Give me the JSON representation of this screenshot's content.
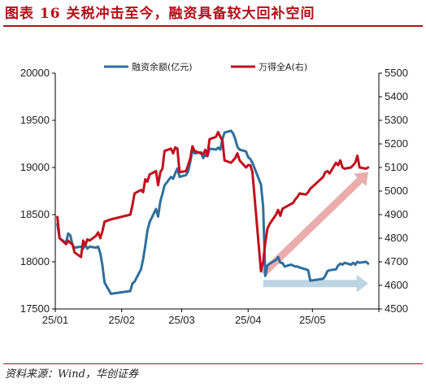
{
  "header": {
    "figure_title": "图表 16   关税冲击至今，融资具备较大回补空间"
  },
  "footer": {
    "source": "资料来源：Wind，华创证券"
  },
  "chart_data": {
    "type": "line",
    "x_tick_labels": [
      "25/01",
      "25/02",
      "25/03",
      "25/04",
      "25/05"
    ],
    "y_left": {
      "ylim": [
        17500,
        20000
      ],
      "ticks": [
        17500,
        18000,
        18500,
        19000,
        19500,
        20000
      ]
    },
    "y_right": {
      "ylim": [
        4500,
        5500
      ],
      "ticks": [
        4500,
        4600,
        4700,
        4800,
        4900,
        5000,
        5100,
        5200,
        5300,
        5400,
        5500
      ]
    },
    "legend_position": "top",
    "grid": false,
    "series": [
      {
        "name": "融资余额(亿元)",
        "axis": "left",
        "color": "#2e6f9e",
        "points": [
          [
            "2025-01-02",
            18400
          ],
          [
            "2025-01-03",
            18250
          ],
          [
            "2025-01-06",
            18200
          ],
          [
            "2025-01-07",
            18300
          ],
          [
            "2025-01-08",
            18280
          ],
          [
            "2025-01-09",
            18180
          ],
          [
            "2025-01-10",
            18150
          ],
          [
            "2025-01-13",
            18160
          ],
          [
            "2025-01-14",
            18140
          ],
          [
            "2025-01-15",
            18180
          ],
          [
            "2025-01-16",
            18140
          ],
          [
            "2025-01-17",
            18160
          ],
          [
            "2025-01-20",
            18150
          ],
          [
            "2025-01-21",
            18160
          ],
          [
            "2025-01-22",
            18090
          ],
          [
            "2025-01-23",
            17960
          ],
          [
            "2025-01-24",
            17780
          ],
          [
            "2025-01-27",
            17660
          ],
          [
            "2025-02-05",
            17690
          ],
          [
            "2025-02-06",
            17770
          ],
          [
            "2025-02-07",
            17790
          ],
          [
            "2025-02-10",
            17920
          ],
          [
            "2025-02-11",
            18030
          ],
          [
            "2025-02-12",
            18170
          ],
          [
            "2025-02-13",
            18330
          ],
          [
            "2025-02-14",
            18420
          ],
          [
            "2025-02-17",
            18560
          ],
          [
            "2025-02-18",
            18480
          ],
          [
            "2025-02-19",
            18640
          ],
          [
            "2025-02-20",
            18720
          ],
          [
            "2025-02-21",
            18810
          ],
          [
            "2025-02-24",
            18900
          ],
          [
            "2025-02-25",
            18880
          ],
          [
            "2025-02-26",
            18940
          ],
          [
            "2025-02-27",
            18990
          ],
          [
            "2025-02-28",
            18900
          ],
          [
            "2025-03-03",
            18920
          ],
          [
            "2025-03-04",
            18960
          ],
          [
            "2025-03-05",
            19060
          ],
          [
            "2025-03-06",
            19190
          ],
          [
            "2025-03-07",
            19150
          ],
          [
            "2025-03-10",
            19160
          ],
          [
            "2025-03-11",
            19100
          ],
          [
            "2025-03-12",
            19130
          ],
          [
            "2025-03-13",
            19120
          ],
          [
            "2025-03-14",
            19200
          ],
          [
            "2025-03-17",
            19190
          ],
          [
            "2025-03-18",
            19210
          ],
          [
            "2025-03-19",
            19190
          ],
          [
            "2025-03-20",
            19300
          ],
          [
            "2025-03-21",
            19370
          ],
          [
            "2025-03-24",
            19390
          ],
          [
            "2025-03-25",
            19360
          ],
          [
            "2025-03-26",
            19300
          ],
          [
            "2025-03-27",
            19220
          ],
          [
            "2025-03-28",
            19190
          ],
          [
            "2025-03-31",
            19170
          ],
          [
            "2025-04-01",
            19110
          ],
          [
            "2025-04-02",
            19090
          ],
          [
            "2025-04-03",
            19050
          ],
          [
            "2025-04-07",
            18820
          ],
          [
            "2025-04-08",
            18580
          ],
          [
            "2025-04-09",
            17850
          ],
          [
            "2025-04-10",
            17960
          ],
          [
            "2025-04-11",
            17980
          ],
          [
            "2025-04-14",
            18020
          ],
          [
            "2025-04-15",
            18050
          ],
          [
            "2025-04-16",
            17990
          ],
          [
            "2025-04-17",
            17990
          ],
          [
            "2025-04-18",
            17950
          ],
          [
            "2025-04-21",
            17970
          ],
          [
            "2025-04-22",
            17960
          ],
          [
            "2025-04-23",
            17950
          ],
          [
            "2025-04-24",
            17950
          ],
          [
            "2025-04-25",
            17940
          ],
          [
            "2025-04-28",
            17920
          ],
          [
            "2025-04-29",
            17910
          ],
          [
            "2025-04-30",
            17800
          ],
          [
            "2025-05-06",
            17820
          ],
          [
            "2025-05-07",
            17850
          ],
          [
            "2025-05-08",
            17900
          ],
          [
            "2025-05-09",
            17910
          ],
          [
            "2025-05-12",
            17920
          ],
          [
            "2025-05-13",
            17960
          ],
          [
            "2025-05-14",
            17980
          ],
          [
            "2025-05-15",
            17970
          ],
          [
            "2025-05-16",
            17990
          ],
          [
            "2025-05-19",
            17970
          ],
          [
            "2025-05-20",
            17990
          ],
          [
            "2025-05-21",
            17970
          ],
          [
            "2025-05-22",
            18000
          ],
          [
            "2025-05-23",
            17990
          ],
          [
            "2025-05-26",
            18000
          ],
          [
            "2025-05-27",
            17980
          ]
        ]
      },
      {
        "name": "万得全A(右)",
        "axis": "right",
        "color": "#c0101e",
        "points": [
          [
            "2025-01-02",
            4890
          ],
          [
            "2025-01-03",
            4800
          ],
          [
            "2025-01-06",
            4775
          ],
          [
            "2025-01-07",
            4790
          ],
          [
            "2025-01-08",
            4780
          ],
          [
            "2025-01-09",
            4775
          ],
          [
            "2025-01-10",
            4740
          ],
          [
            "2025-01-13",
            4720
          ],
          [
            "2025-01-14",
            4790
          ],
          [
            "2025-01-15",
            4770
          ],
          [
            "2025-01-16",
            4795
          ],
          [
            "2025-01-17",
            4790
          ],
          [
            "2025-01-20",
            4810
          ],
          [
            "2025-01-21",
            4825
          ],
          [
            "2025-01-22",
            4800
          ],
          [
            "2025-01-23",
            4830
          ],
          [
            "2025-01-24",
            4870
          ],
          [
            "2025-01-27",
            4880
          ],
          [
            "2025-02-05",
            4900
          ],
          [
            "2025-02-06",
            4940
          ],
          [
            "2025-02-07",
            4990
          ],
          [
            "2025-02-10",
            5005
          ],
          [
            "2025-02-11",
            4995
          ],
          [
            "2025-02-12",
            5050
          ],
          [
            "2025-02-13",
            5040
          ],
          [
            "2025-02-14",
            5070
          ],
          [
            "2025-02-17",
            5085
          ],
          [
            "2025-02-18",
            5025
          ],
          [
            "2025-02-19",
            5080
          ],
          [
            "2025-02-20",
            5095
          ],
          [
            "2025-02-21",
            5170
          ],
          [
            "2025-02-24",
            5180
          ],
          [
            "2025-02-25",
            5160
          ],
          [
            "2025-02-26",
            5185
          ],
          [
            "2025-02-27",
            5180
          ],
          [
            "2025-02-28",
            5080
          ],
          [
            "2025-03-03",
            5085
          ],
          [
            "2025-03-04",
            5110
          ],
          [
            "2025-03-05",
            5140
          ],
          [
            "2025-03-06",
            5190
          ],
          [
            "2025-03-07",
            5170
          ],
          [
            "2025-03-10",
            5160
          ],
          [
            "2025-03-11",
            5155
          ],
          [
            "2025-03-12",
            5175
          ],
          [
            "2025-03-13",
            5150
          ],
          [
            "2025-03-14",
            5220
          ],
          [
            "2025-03-17",
            5230
          ],
          [
            "2025-03-18",
            5250
          ],
          [
            "2025-03-19",
            5230
          ],
          [
            "2025-03-20",
            5215
          ],
          [
            "2025-03-21",
            5130
          ],
          [
            "2025-03-24",
            5120
          ],
          [
            "2025-03-25",
            5130
          ],
          [
            "2025-03-26",
            5140
          ],
          [
            "2025-03-27",
            5160
          ],
          [
            "2025-03-28",
            5130
          ],
          [
            "2025-03-31",
            5100
          ],
          [
            "2025-04-01",
            5110
          ],
          [
            "2025-04-02",
            5110
          ],
          [
            "2025-04-03",
            5080
          ],
          [
            "2025-04-07",
            4660
          ],
          [
            "2025-04-08",
            4700
          ],
          [
            "2025-04-09",
            4780
          ],
          [
            "2025-04-10",
            4840
          ],
          [
            "2025-04-11",
            4860
          ],
          [
            "2025-04-14",
            4900
          ],
          [
            "2025-04-15",
            4920
          ],
          [
            "2025-04-16",
            4895
          ],
          [
            "2025-04-17",
            4925
          ],
          [
            "2025-04-18",
            4930
          ],
          [
            "2025-04-21",
            4945
          ],
          [
            "2025-04-22",
            4950
          ],
          [
            "2025-04-23",
            4965
          ],
          [
            "2025-04-24",
            4975
          ],
          [
            "2025-04-25",
            4990
          ],
          [
            "2025-04-28",
            4985
          ],
          [
            "2025-04-29",
            4995
          ],
          [
            "2025-04-30",
            5010
          ],
          [
            "2025-05-06",
            5060
          ],
          [
            "2025-05-07",
            5080
          ],
          [
            "2025-05-08",
            5085
          ],
          [
            "2025-05-09",
            5075
          ],
          [
            "2025-05-12",
            5120
          ],
          [
            "2025-05-13",
            5110
          ],
          [
            "2025-05-14",
            5130
          ],
          [
            "2025-05-15",
            5100
          ],
          [
            "2025-05-16",
            5095
          ],
          [
            "2025-05-19",
            5100
          ],
          [
            "2025-05-20",
            5110
          ],
          [
            "2025-05-21",
            5120
          ],
          [
            "2025-05-22",
            5150
          ],
          [
            "2025-05-23",
            5100
          ],
          [
            "2025-05-26",
            5095
          ],
          [
            "2025-05-27",
            5100
          ]
        ]
      }
    ],
    "annotations": [
      {
        "kind": "arrow",
        "color": "#e8a3a3",
        "meaning": "upward trend of 万得全A",
        "from": [
          "2025-04-08",
          4650
        ],
        "to": [
          "2025-05-27",
          5080
        ]
      },
      {
        "kind": "arrow",
        "color": "#b6cfe0",
        "meaning": "flat trend of 融资余额",
        "from": [
          "2025-04-08",
          17770
        ],
        "to": [
          "2025-05-27",
          17770
        ]
      }
    ]
  }
}
